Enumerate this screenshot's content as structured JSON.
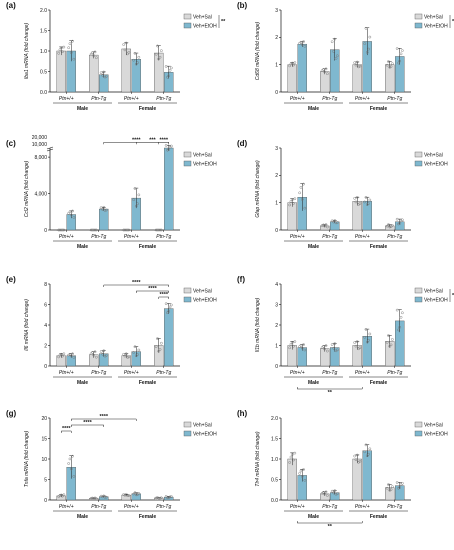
{
  "colors": {
    "sal": "#d9d9d9",
    "etoh": "#7fb8cf",
    "axis": "#111111",
    "point": "#777777"
  },
  "legend": {
    "sal": "Veh+Sal",
    "etoh": "Veh+EtOH"
  },
  "groups": [
    "Male",
    "Female"
  ],
  "genotypes": [
    "Ptn+/+",
    "Ptn-Tg",
    "Ptn+/+",
    "Ptn-Tg"
  ],
  "chart_data": [
    {
      "id": "a",
      "type": "bar",
      "label": "(a)",
      "ylabel": "Iba1 mRNA (fold change)",
      "ylim": [
        0,
        2
      ],
      "ticks": [
        0,
        0.5,
        1,
        1.5,
        2
      ],
      "tick_labels": [
        "0.0",
        "0.5",
        "1.0",
        "1.5",
        "2.0"
      ],
      "legend_sig": "**",
      "series": [
        {
          "name": "Veh+Sal",
          "values": [
            1.0,
            0.9,
            1.05,
            0.95
          ],
          "err": [
            0.1,
            0.08,
            0.15,
            0.18
          ]
        },
        {
          "name": "Veh+EtOH",
          "values": [
            1.0,
            0.42,
            0.8,
            0.48
          ],
          "err": [
            0.25,
            0.07,
            0.15,
            0.15
          ]
        }
      ],
      "brackets": []
    },
    {
      "id": "b",
      "type": "bar",
      "label": "(b)",
      "ylabel": "Cd68 mRNA (fold change)",
      "ylim": [
        0,
        3
      ],
      "ticks": [
        0,
        1,
        2,
        3
      ],
      "tick_labels": [
        "0",
        "1",
        "2",
        "3"
      ],
      "legend_sig": "**",
      "series": [
        {
          "name": "Veh+Sal",
          "values": [
            1.0,
            0.75,
            1.0,
            1.0
          ],
          "err": [
            0.08,
            0.1,
            0.1,
            0.12
          ]
        },
        {
          "name": "Veh+EtOH",
          "values": [
            1.75,
            1.55,
            1.85,
            1.3
          ],
          "err": [
            0.1,
            0.4,
            0.5,
            0.3
          ]
        }
      ],
      "brackets": []
    },
    {
      "id": "c",
      "type": "bar",
      "label": "(c)",
      "ylabel": "Ccl2 mRNA (fold change)",
      "ylim": [
        0,
        9000
      ],
      "ticks": [
        0,
        4000,
        8000
      ],
      "tick_labels": [
        "0",
        "4,000",
        "8,000"
      ],
      "extra_ticks": [
        "10,000",
        "20,000"
      ],
      "legend_sig": "",
      "series": [
        {
          "name": "Veh+Sal",
          "values": [
            0,
            0,
            0,
            0
          ],
          "err": [
            0,
            0,
            0,
            0
          ]
        },
        {
          "name": "Veh+EtOH",
          "values": [
            1700,
            2300,
            3500,
            9000
          ],
          "err": [
            400,
            200,
            1100,
            300
          ]
        }
      ],
      "brackets": [
        {
          "from": 3,
          "to": 7,
          "level": 2,
          "text": "****"
        },
        {
          "from": 5,
          "to": 7,
          "level": 1,
          "text": "***"
        },
        {
          "from": 6,
          "to": 7,
          "level": 0,
          "text": "****"
        }
      ]
    },
    {
      "id": "d",
      "type": "bar",
      "label": "(d)",
      "ylabel": "Gfap mRNA (fold change)",
      "ylim": [
        0,
        3
      ],
      "ticks": [
        0,
        1,
        2,
        3
      ],
      "tick_labels": [
        "0",
        "1",
        "2",
        "3"
      ],
      "legend_sig": "",
      "series": [
        {
          "name": "Veh+Sal",
          "values": [
            1.0,
            0.15,
            1.05,
            0.15
          ],
          "err": [
            0.15,
            0.05,
            0.15,
            0.05
          ]
        },
        {
          "name": "Veh+EtOH",
          "values": [
            1.2,
            0.3,
            1.05,
            0.3
          ],
          "err": [
            0.5,
            0.05,
            0.15,
            0.1
          ]
        }
      ],
      "brackets": []
    },
    {
      "id": "e",
      "type": "bar",
      "label": "(e)",
      "ylabel": "Il6 mRNA (fold change)",
      "ylim": [
        0,
        8
      ],
      "ticks": [
        0,
        2,
        4,
        6,
        8
      ],
      "tick_labels": [
        "0",
        "2",
        "4",
        "6",
        "8"
      ],
      "legend_sig": "",
      "series": [
        {
          "name": "Veh+Sal",
          "values": [
            1.0,
            1.1,
            1.0,
            2.0
          ],
          "err": [
            0.2,
            0.3,
            0.2,
            0.7
          ]
        },
        {
          "name": "Veh+EtOH",
          "values": [
            1.0,
            1.2,
            1.4,
            5.6
          ],
          "err": [
            0.2,
            0.3,
            0.5,
            0.5
          ]
        }
      ],
      "brackets": [
        {
          "from": 3,
          "to": 7,
          "level": 2,
          "text": "****"
        },
        {
          "from": 5,
          "to": 7,
          "level": 1,
          "text": "****"
        },
        {
          "from": 6,
          "to": 7,
          "level": 0,
          "text": "****"
        }
      ]
    },
    {
      "id": "f",
      "type": "bar",
      "label": "(f)",
      "ylabel": "Il1b mRNA (fold change)",
      "ylim": [
        0,
        4
      ],
      "ticks": [
        0,
        1,
        2,
        3,
        4
      ],
      "tick_labels": [
        "0",
        "1",
        "2",
        "3",
        "4"
      ],
      "legend_sig": "*",
      "below_sig": "**",
      "series": [
        {
          "name": "Veh+Sal",
          "values": [
            1.0,
            0.85,
            1.0,
            1.2
          ],
          "err": [
            0.2,
            0.15,
            0.2,
            0.3
          ]
        },
        {
          "name": "Veh+EtOH",
          "values": [
            0.9,
            0.9,
            1.45,
            2.2
          ],
          "err": [
            0.15,
            0.2,
            0.35,
            0.55
          ]
        }
      ],
      "brackets": []
    },
    {
      "id": "g",
      "type": "bar",
      "label": "(g)",
      "ylabel": "Tnfa mRNA (fold change)",
      "ylim": [
        0,
        20
      ],
      "ticks": [
        0,
        5,
        10,
        15,
        20
      ],
      "tick_labels": [
        "0",
        "5",
        "10",
        "15",
        "20"
      ],
      "legend_sig": "",
      "series": [
        {
          "name": "Veh+Sal",
          "values": [
            1.0,
            0.4,
            1.2,
            0.5
          ],
          "err": [
            0.3,
            0.1,
            0.2,
            0.1
          ]
        },
        {
          "name": "Veh+EtOH",
          "values": [
            8.0,
            0.8,
            1.5,
            0.7
          ],
          "err": [
            2.8,
            0.2,
            0.3,
            0.2
          ]
        }
      ],
      "brackets": [
        {
          "from": 1,
          "to": 5,
          "level": 2,
          "text": "****"
        },
        {
          "from": 1,
          "to": 3,
          "level": 1,
          "text": "****"
        },
        {
          "from": 0,
          "to": 1,
          "level": 0,
          "text": "****"
        }
      ]
    },
    {
      "id": "h",
      "type": "bar",
      "label": "(h)",
      "ylabel": "Tlr4 mRNA (fold change)",
      "ylim": [
        0,
        2
      ],
      "ticks": [
        0,
        0.5,
        1,
        1.5,
        2
      ],
      "tick_labels": [
        "0.0",
        "0.5",
        "1.0",
        "1.5",
        "2.0"
      ],
      "legend_sig": "",
      "below_sig": "**",
      "series": [
        {
          "name": "Veh+Sal",
          "values": [
            1.0,
            0.15,
            1.0,
            0.3
          ],
          "err": [
            0.15,
            0.05,
            0.1,
            0.08
          ]
        },
        {
          "name": "Veh+EtOH",
          "values": [
            0.6,
            0.18,
            1.2,
            0.35
          ],
          "err": [
            0.15,
            0.05,
            0.15,
            0.08
          ]
        }
      ],
      "brackets": []
    }
  ]
}
